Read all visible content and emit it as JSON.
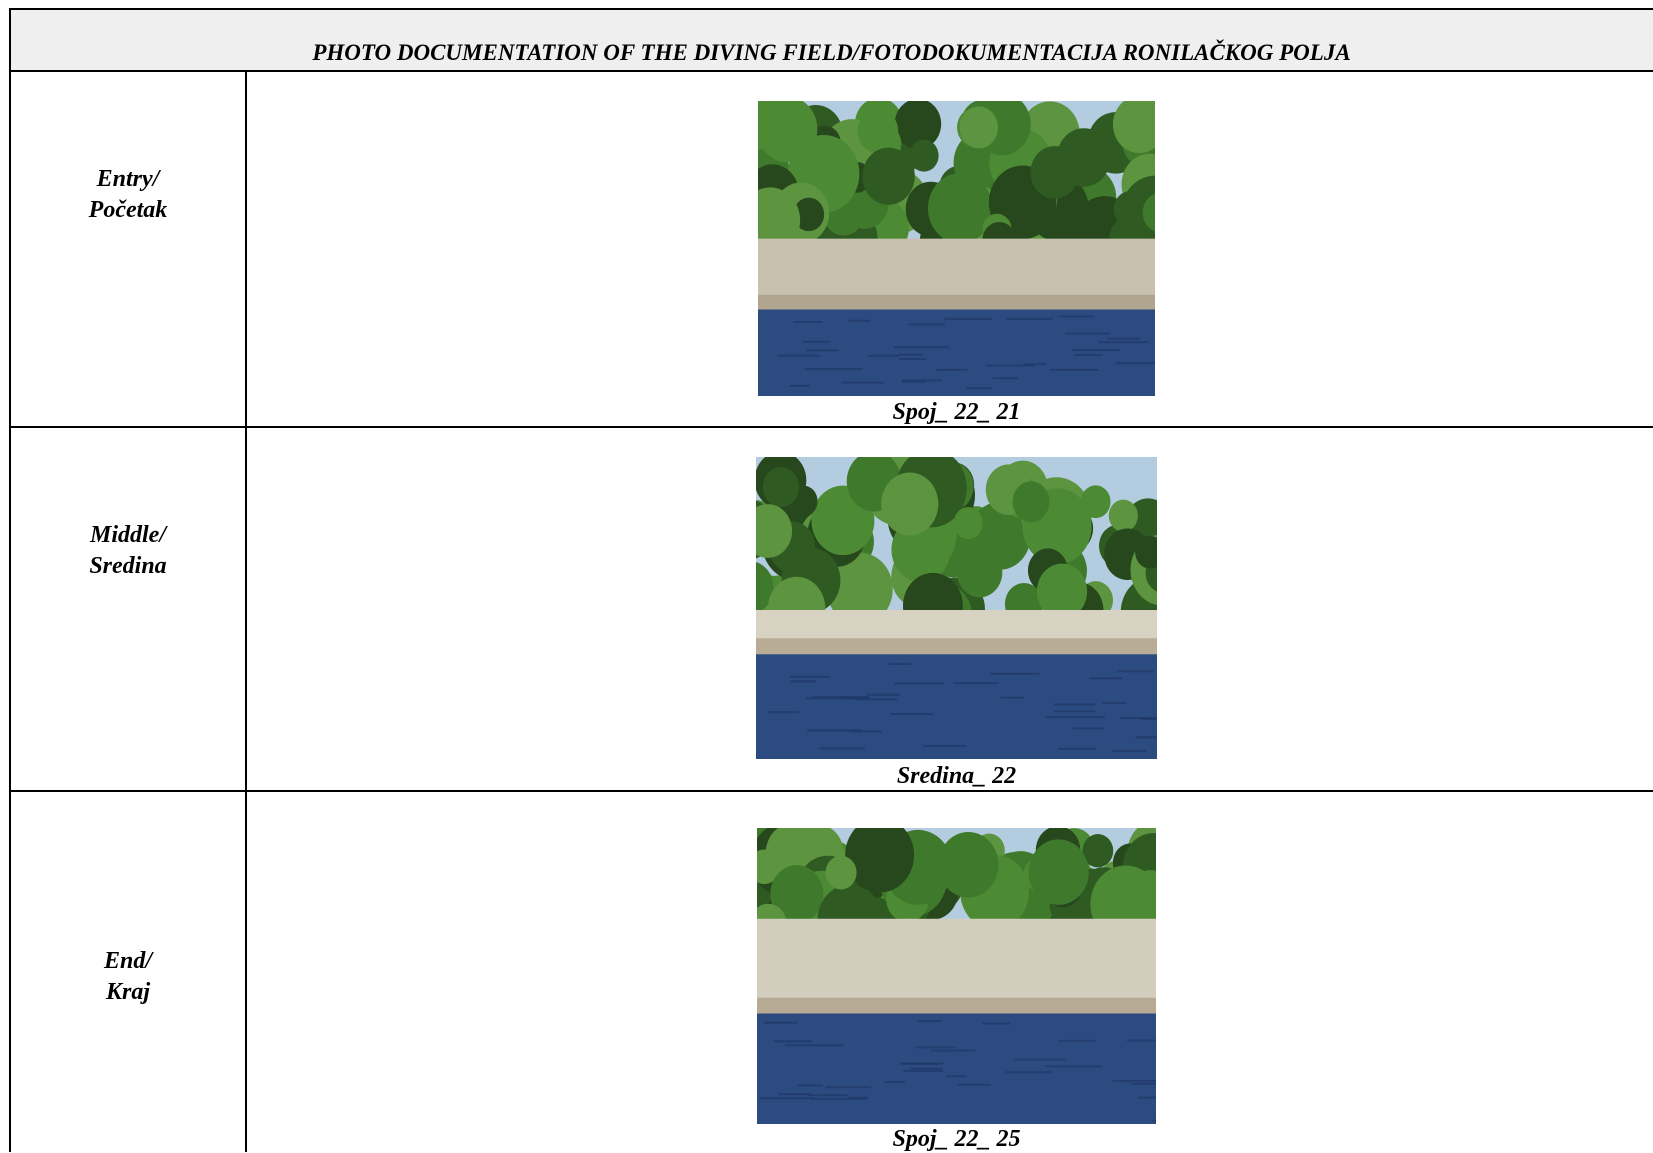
{
  "header": {
    "title": "PHOTO DOCUMENTATION OF THE DIVING FIELD/FOTODOKUMENTACIJA RONILAČKOG POLJA"
  },
  "rows": [
    {
      "label": [
        "Entry/",
        "Početak"
      ],
      "caption": "Spoj_ 22_ 21"
    },
    {
      "label": [
        "Middle/",
        "Sredina"
      ],
      "caption": "Sredina_ 22"
    },
    {
      "label": [
        "End/",
        "Kraj"
      ],
      "caption": "Spoj_ 22_ 25"
    }
  ]
}
